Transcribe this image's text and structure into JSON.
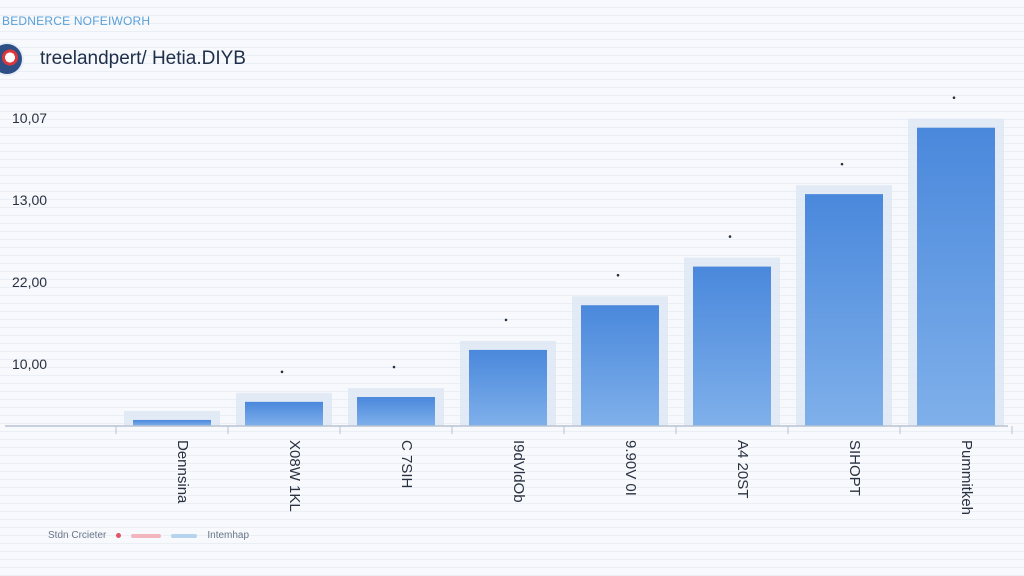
{
  "header": {
    "top_label": "BEDNERCE NOFEIWORH",
    "title": "treelandpert/ Hetia.DIYB",
    "logo_icon": "brand-logo-icon"
  },
  "legend": {
    "left_text": "Stdn Crcieter",
    "right_text": "Intemhap"
  },
  "colors": {
    "bar": "#4f8fe0",
    "bar_glow": "#dbe6f3",
    "axis": "#b7c2d1",
    "text": "#2a3140",
    "legend_dot": "#e05567"
  },
  "chart_data": {
    "type": "bar",
    "title": "",
    "xlabel": "",
    "ylabel": "",
    "y_tick_labels": [
      "10,00",
      "22,00",
      "13,00",
      "10,07"
    ],
    "categories": [
      "Dennsina",
      "X08W 1KL",
      "C 7SIH",
      "I9dVldOb",
      "9.90V 0I",
      "A4 20ST",
      "SIHOPT",
      "Pummitkeh"
    ],
    "values": [
      0.5,
      2.0,
      2.4,
      6.3,
      10.0,
      13.2,
      19.2,
      24.7
    ],
    "ylim": [
      0,
      26
    ],
    "grid": true,
    "legend": "bottom-left"
  }
}
